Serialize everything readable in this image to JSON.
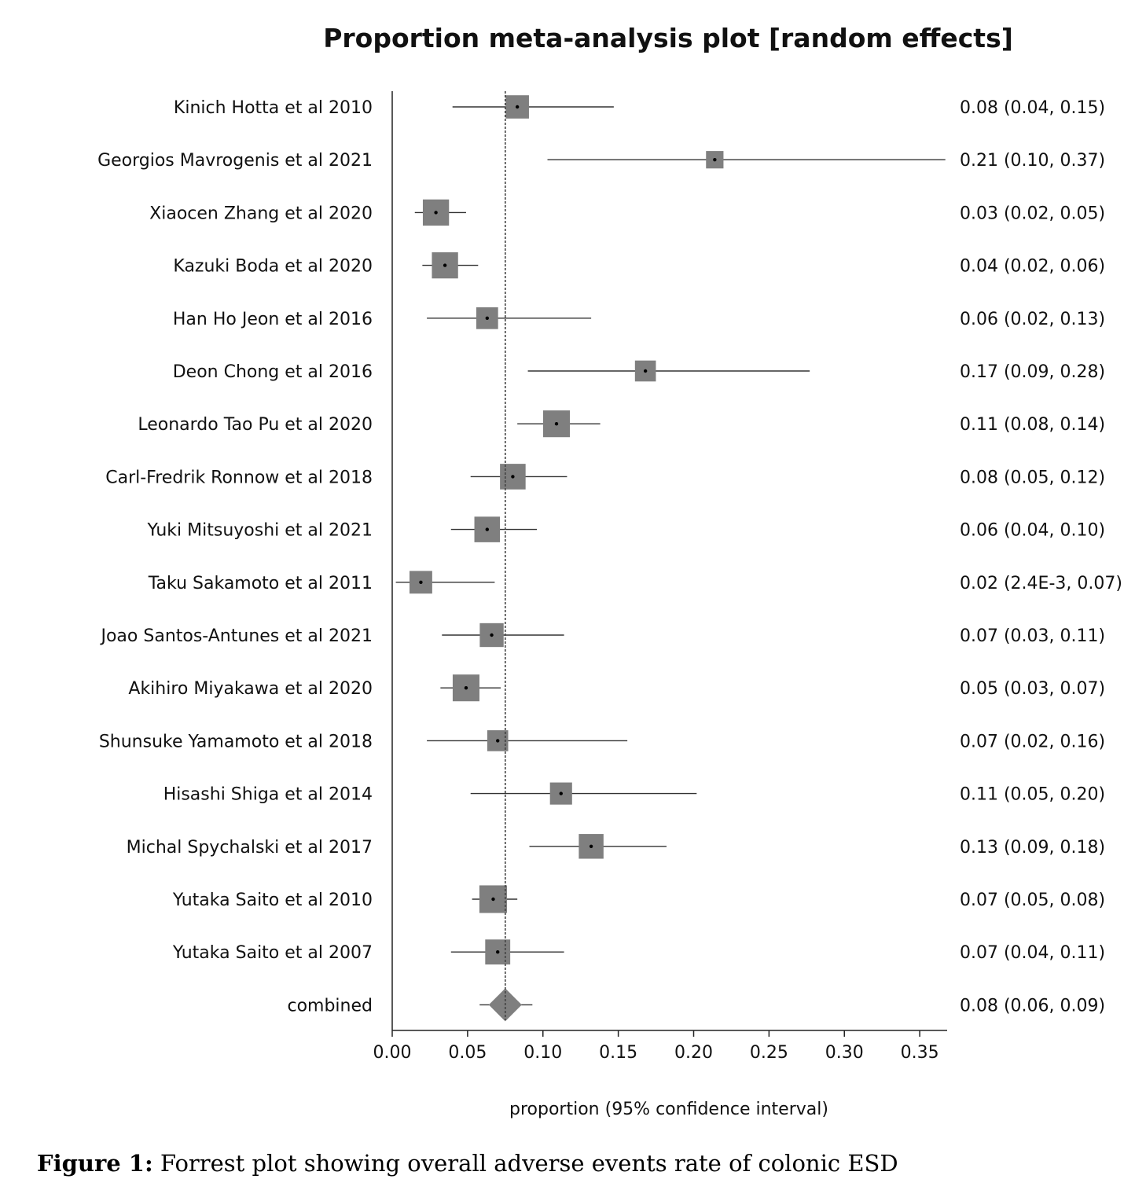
{
  "chart_data": {
    "type": "forest",
    "title": "Proportion meta-analysis plot [random effects]",
    "xlabel": "proportion (95% confidence interval)",
    "xlim": [
      0,
      0.367
    ],
    "xticks": [
      "0.00",
      "0.05",
      "0.10",
      "0.15",
      "0.20",
      "0.25",
      "0.30",
      "0.35"
    ],
    "xtick_values": [
      0,
      0.05,
      0.1,
      0.15,
      0.2,
      0.25,
      0.3,
      0.35
    ],
    "pooled_reference_line": 0.075,
    "colors": {
      "marker": "#7f7f7f",
      "line": "#000000"
    },
    "studies": [
      {
        "name": "Kinich Hotta et al 2010",
        "est": 0.083,
        "lo": 0.04,
        "hi": 0.147,
        "weight": 0.8,
        "label": "0.08 (0.04, 0.15)"
      },
      {
        "name": "Georgios Mavrogenis et al 2021",
        "est": 0.214,
        "lo": 0.103,
        "hi": 0.37,
        "weight": 0.6,
        "label": "0.21 (0.10, 0.37)"
      },
      {
        "name": "Xiaocen Zhang et al 2020",
        "est": 0.029,
        "lo": 0.015,
        "hi": 0.049,
        "weight": 0.9,
        "label": "0.03 (0.02, 0.05)"
      },
      {
        "name": "Kazuki Boda et al 2020",
        "est": 0.035,
        "lo": 0.02,
        "hi": 0.057,
        "weight": 0.9,
        "label": "0.04 (0.02, 0.06)"
      },
      {
        "name": "Han Ho Jeon et al 2016",
        "est": 0.063,
        "lo": 0.023,
        "hi": 0.132,
        "weight": 0.75,
        "label": "0.06 (0.02, 0.13)"
      },
      {
        "name": "Deon Chong et al 2016",
        "est": 0.168,
        "lo": 0.09,
        "hi": 0.277,
        "weight": 0.72,
        "label": "0.17 (0.09, 0.28)"
      },
      {
        "name": "Leonardo Tao Pu et al 2020",
        "est": 0.109,
        "lo": 0.083,
        "hi": 0.138,
        "weight": 0.92,
        "label": "0.11 (0.08, 0.14)"
      },
      {
        "name": "Carl-Fredrik Ronnow et al 2018",
        "est": 0.08,
        "lo": 0.052,
        "hi": 0.116,
        "weight": 0.88,
        "label": "0.08 (0.05, 0.12)"
      },
      {
        "name": "Yuki Mitsuyoshi et al 2021",
        "est": 0.063,
        "lo": 0.039,
        "hi": 0.096,
        "weight": 0.88,
        "label": "0.06 (0.04, 0.10)"
      },
      {
        "name": "Taku Sakamoto et al 2011",
        "est": 0.019,
        "lo": 0.0024,
        "hi": 0.068,
        "weight": 0.78,
        "label": "0.02 (2.4E-3, 0.07)"
      },
      {
        "name": "Joao Santos-Antunes et al 2021",
        "est": 0.066,
        "lo": 0.033,
        "hi": 0.114,
        "weight": 0.82,
        "label": "0.07 (0.03, 0.11)"
      },
      {
        "name": "Akihiro Miyakawa et al 2020",
        "est": 0.049,
        "lo": 0.032,
        "hi": 0.072,
        "weight": 0.92,
        "label": "0.05 (0.03, 0.07)"
      },
      {
        "name": "Shunsuke Yamamoto et al 2018",
        "est": 0.07,
        "lo": 0.023,
        "hi": 0.156,
        "weight": 0.72,
        "label": "0.07 (0.02, 0.16)"
      },
      {
        "name": "Hisashi Shiga et al 2014",
        "est": 0.112,
        "lo": 0.052,
        "hi": 0.202,
        "weight": 0.76,
        "label": "0.11 (0.05, 0.20)"
      },
      {
        "name": "Michal Spychalski et al 2017",
        "est": 0.132,
        "lo": 0.091,
        "hi": 0.182,
        "weight": 0.85,
        "label": "0.13 (0.09, 0.18)"
      },
      {
        "name": "Yutaka Saito et al 2010",
        "est": 0.067,
        "lo": 0.053,
        "hi": 0.083,
        "weight": 0.95,
        "label": "0.07 (0.05, 0.08)"
      },
      {
        "name": "Yutaka Saito et al 2007",
        "est": 0.07,
        "lo": 0.039,
        "hi": 0.114,
        "weight": 0.86,
        "label": "0.07 (0.04, 0.11)"
      }
    ],
    "combined": {
      "name": "combined",
      "est": 0.075,
      "lo": 0.058,
      "hi": 0.093,
      "label": "0.08 (0.06, 0.09)"
    }
  },
  "caption": {
    "prefix": "Figure 1:",
    "text": " Forrest plot showing overall adverse events rate of colonic ESD"
  }
}
